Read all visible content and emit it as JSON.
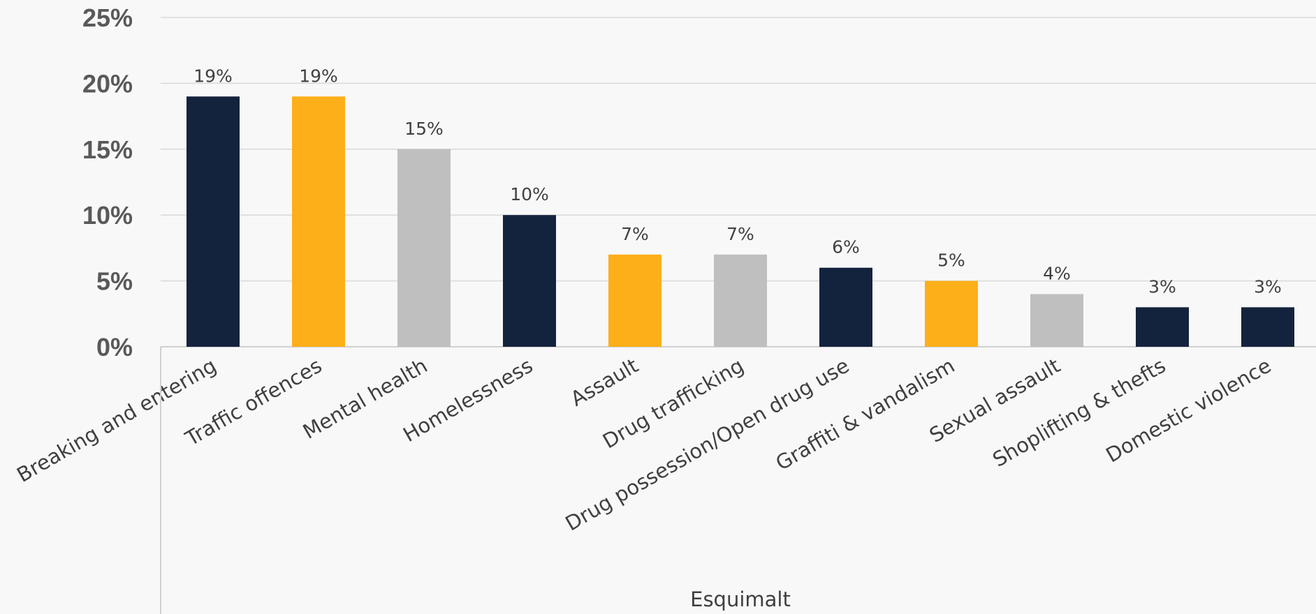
{
  "chart_data": {
    "type": "bar",
    "title": "",
    "xlabel": "Esquimalt",
    "ylabel": "",
    "ylim": [
      0,
      25
    ],
    "yticks": [
      0,
      5,
      10,
      15,
      20,
      25
    ],
    "ytick_labels": [
      "0%",
      "5%",
      "10%",
      "15%",
      "20%",
      "25%"
    ],
    "grid": true,
    "categories": [
      "Breaking and entering",
      "Traffic offences",
      "Mental health",
      "Homelessness",
      "Assault",
      "Drug trafficking",
      "Drug possession/Open drug use",
      "Graffiti & vandalism",
      "Sexual assault",
      "Shoplifting & thefts",
      "Domestic violence"
    ],
    "values": [
      19,
      19,
      15,
      10,
      7,
      7,
      6,
      5,
      4,
      3,
      3
    ],
    "data_labels": [
      "19%",
      "19%",
      "15%",
      "10%",
      "7%",
      "7%",
      "6%",
      "5%",
      "4%",
      "3%",
      "3%"
    ],
    "bar_colors": [
      "#14233d",
      "#fdaf19",
      "#bfbfbf",
      "#14233d",
      "#fdaf19",
      "#bfbfbf",
      "#14233d",
      "#fdaf19",
      "#bfbfbf",
      "#14233d",
      "#14233d"
    ],
    "gridline_color": "#d9d9d9",
    "axis_color": "#d0d0d0"
  }
}
